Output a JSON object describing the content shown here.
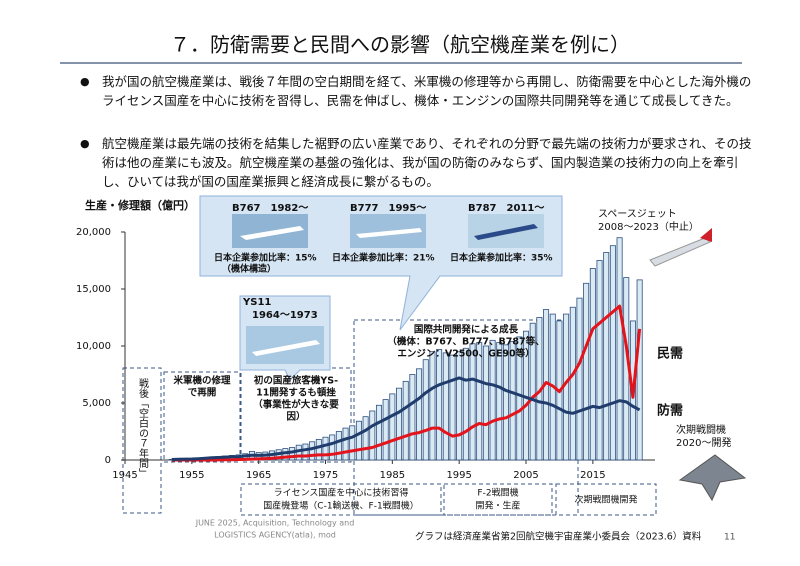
{
  "slide": {
    "title": "７．防衛需要と民間への影響（航空機産業を例に）",
    "bullets": [
      "我が国の航空機産業は、戦後７年間の空白期間を経て、米軍機の修理等から再開し、防衛需要を中心とした海外機のライセンス国産を中心に技術を習得し、民需を伸ばし、機体・エンジンの国際共同開発等を通じて成長してきた。",
      "航空機産業は最先端の技術を結集した裾野の広い産業であり、それぞれの分野で最先端の技術力が要求され、その技術は他の産業にも波及。航空機産業の基盤の強化は、我が国の防衛のみならず、国内製造業の技術力の向上を牽引し、ひいては我が国の国産業振興と経済成長に繋がるもの。"
    ],
    "footer": {
      "org": [
        "JUNE 2025, Acquisition, Technology and",
        "LOGISTICS AGENCY(atla), mod"
      ],
      "source": "グラフは経済産業省第2回航空機宇宙産業小委員会（2023.6）資料",
      "page": "11"
    }
  },
  "chart_data": {
    "type": "bar",
    "y_label": "生産・修理額（億円）",
    "x": [
      1952,
      1953,
      1954,
      1955,
      1956,
      1957,
      1958,
      1959,
      1960,
      1961,
      1962,
      1963,
      1964,
      1965,
      1966,
      1967,
      1968,
      1969,
      1970,
      1971,
      1972,
      1973,
      1974,
      1975,
      1976,
      1977,
      1978,
      1979,
      1980,
      1981,
      1982,
      1983,
      1984,
      1985,
      1986,
      1987,
      1988,
      1989,
      1990,
      1991,
      1992,
      1993,
      1994,
      1995,
      1996,
      1997,
      1998,
      1999,
      2000,
      2001,
      2002,
      2003,
      2004,
      2005,
      2006,
      2007,
      2008,
      2009,
      2010,
      2011,
      2012,
      2013,
      2014,
      2015,
      2016,
      2017,
      2018,
      2019,
      2020,
      2021,
      2022
    ],
    "values": [
      50,
      80,
      100,
      120,
      150,
      200,
      250,
      300,
      350,
      400,
      450,
      550,
      750,
      650,
      700,
      800,
      900,
      1000,
      1100,
      1300,
      1400,
      1600,
      1800,
      2000,
      2200,
      2500,
      2800,
      3000,
      3400,
      3800,
      4300,
      4800,
      5300,
      5800,
      6300,
      6900,
      7500,
      8000,
      8800,
      9500,
      9700,
      9400,
      9200,
      9500,
      9800,
      10200,
      10300,
      10000,
      10500,
      10300,
      10100,
      10400,
      10800,
      11300,
      12000,
      12500,
      13200,
      12800,
      12200,
      12800,
      13400,
      14200,
      15500,
      16800,
      17500,
      18200,
      18800,
      19500,
      16000,
      12200,
      15800
    ],
    "color": "#d9eaf5",
    "edge_color": "#2d4f7f",
    "series": [
      {
        "name": "民需",
        "color": "#e3141b",
        "values": [
          0,
          0,
          0,
          0,
          0,
          0,
          0,
          10,
          20,
          30,
          40,
          50,
          80,
          100,
          120,
          150,
          200,
          250,
          300,
          350,
          350,
          400,
          450,
          450,
          500,
          600,
          700,
          800,
          900,
          1000,
          1100,
          1300,
          1500,
          1700,
          1900,
          2100,
          2300,
          2400,
          2600,
          2800,
          2800,
          2400,
          2100,
          2200,
          2500,
          2900,
          3200,
          3100,
          3400,
          3600,
          3700,
          4000,
          4300,
          4800,
          5500,
          6000,
          6800,
          6500,
          6000,
          6800,
          7500,
          8500,
          10000,
          11500,
          12000,
          12500,
          13000,
          13500,
          10000,
          5500,
          11500
        ]
      },
      {
        "name": "防需",
        "color": "#1f3c6c",
        "values": [
          40,
          60,
          80,
          90,
          110,
          150,
          190,
          220,
          250,
          280,
          300,
          360,
          420,
          400,
          430,
          480,
          560,
          640,
          700,
          820,
          900,
          1000,
          1150,
          1300,
          1450,
          1650,
          1850,
          2000,
          2300,
          2600,
          3000,
          3300,
          3600,
          3900,
          4200,
          4600,
          5000,
          5400,
          5900,
          6300,
          6600,
          6800,
          7000,
          7200,
          7000,
          7100,
          6900,
          6700,
          6600,
          6400,
          6100,
          5900,
          5700,
          5500,
          5300,
          5100,
          5000,
          4800,
          4500,
          4200,
          4100,
          4300,
          4500,
          4700,
          4600,
          4800,
          5000,
          5200,
          5100,
          4700,
          4400
        ]
      }
    ],
    "xlim": [
      1945,
      2024
    ],
    "xticks": [
      1945,
      1955,
      1965,
      1975,
      1985,
      1995,
      2005,
      2015
    ],
    "ylim": [
      0,
      20000
    ],
    "yticks": [
      0,
      {
        "value": 5000,
        "label": "5,000"
      },
      {
        "value": 10000,
        "label": "10,000"
      },
      {
        "value": 15000,
        "label": "15,000"
      },
      {
        "value": 20000,
        "label": "20,000"
      }
    ],
    "grid": false,
    "annotations": [
      "B767　1982～",
      "日本企業参加比率：15%",
      "（機体構造）",
      "B777　1995～",
      "日本企業参加比率：21%",
      "B787　2011～",
      "日本企業参加比率：35%",
      "スペースジェット",
      "2008～2023（中止）",
      "YS11",
      "1964～1973",
      "国際共同開発による成長",
      "（機体：B767、B777、B787等、",
      "エンジン：V2500、GE90等）",
      "米軍機の修理",
      "で再開",
      "初の国産旅客機YS-",
      "11開発するも頓挫",
      "（事業性が大きな要",
      "因）",
      "戦後「空白の７年間」",
      "次期戦闘機",
      "2020～開発",
      "ライセンス国産を中心に技術習得",
      "国産機登場（C-1輸送機、F-1戦闘機）",
      "F-2戦闘機",
      "開発・生産",
      "次期戦闘機開発"
    ]
  }
}
